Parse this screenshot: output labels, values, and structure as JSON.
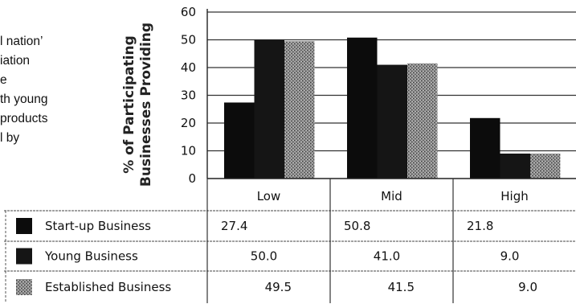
{
  "intro_text_fragments": [
    "l nation’",
    "iation",
    "e",
    "th young",
    "products",
    "l by"
  ],
  "chart_data": {
    "type": "bar",
    "ylabel_lines": [
      "% of Participating",
      "Businesses Providing"
    ],
    "ylim": [
      0,
      60
    ],
    "yticks": [
      0,
      10,
      20,
      30,
      40,
      50,
      60
    ],
    "ytick_labels": [
      "0",
      "10",
      "20",
      "30",
      "40",
      "50",
      "60"
    ],
    "grid": true,
    "legend_placement": "table-left",
    "categories": [
      "Low",
      "Mid",
      "High"
    ],
    "series": [
      {
        "name": "Start-up Business",
        "values": [
          27.4,
          50.8,
          21.8
        ],
        "value_labels": [
          "27.4",
          "50.8",
          "21.8"
        ],
        "color": "#0c0c0c"
      },
      {
        "name": "Young Business",
        "values": [
          50.0,
          41.0,
          9.0
        ],
        "value_labels": [
          "50.0",
          "41.0",
          "9.0"
        ],
        "color": "#151515"
      },
      {
        "name": "Established Business",
        "values": [
          49.5,
          41.5,
          9.0
        ],
        "value_labels": [
          "49.5",
          "41.5",
          "9.0"
        ],
        "color": "#6e6e6e"
      }
    ]
  }
}
